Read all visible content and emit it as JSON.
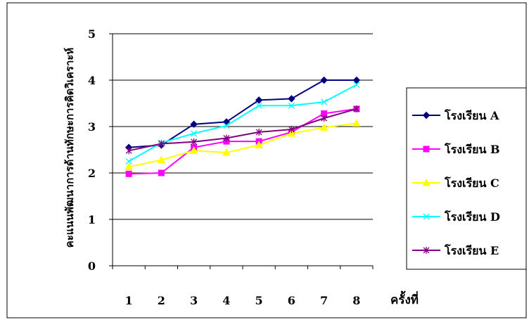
{
  "chart_data": {
    "type": "line",
    "title": "",
    "xlabel": "ครั้งที่",
    "ylabel": "คะแนนพัฒนาการด้านทักษะการคิดวิเคราะห์",
    "x": [
      "1",
      "2",
      "3",
      "4",
      "5",
      "6",
      "7",
      "8"
    ],
    "ylim": [
      0,
      5
    ],
    "yticks": [
      "0",
      "1",
      "2",
      "3",
      "4",
      "5"
    ],
    "grid": "horizontal",
    "legend_position": "right",
    "series": [
      {
        "name": "โรงเรียน A",
        "color": "#000080",
        "marker": "diamond",
        "values": [
          2.55,
          2.6,
          3.05,
          3.1,
          3.57,
          3.6,
          4.0,
          4.0
        ]
      },
      {
        "name": "โรงเรียน B",
        "color": "#FF00FF",
        "marker": "square",
        "values": [
          1.98,
          2.0,
          2.55,
          2.68,
          2.68,
          2.88,
          3.28,
          3.38
        ]
      },
      {
        "name": "โรงเรียน C",
        "color": "#FFFF00",
        "marker": "triangle",
        "values": [
          2.13,
          2.28,
          2.48,
          2.44,
          2.6,
          2.85,
          2.98,
          3.07
        ]
      },
      {
        "name": "โรงเรียน D",
        "color": "#00FFFF",
        "marker": "x",
        "values": [
          2.25,
          2.65,
          2.85,
          3.02,
          3.45,
          3.45,
          3.53,
          3.9
        ]
      },
      {
        "name": "โรงเรียน E",
        "color": "#800080",
        "marker": "star",
        "values": [
          2.48,
          2.63,
          2.67,
          2.75,
          2.88,
          2.94,
          3.18,
          3.38
        ]
      }
    ]
  }
}
